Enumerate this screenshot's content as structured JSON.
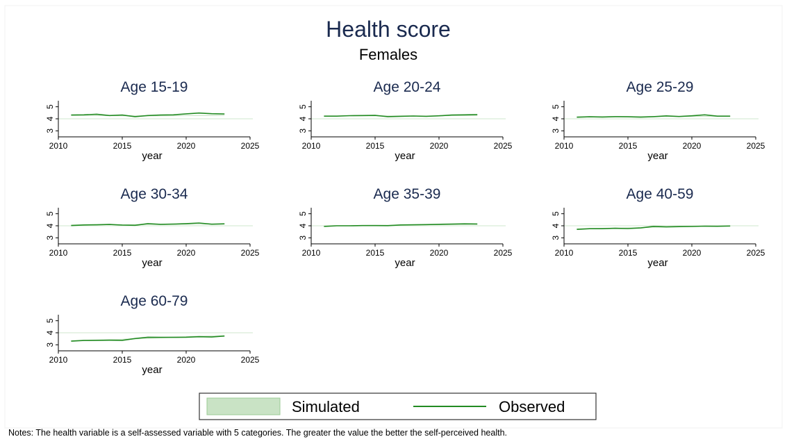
{
  "figure": {
    "title": "Health score",
    "subtitle": "Females",
    "note": "Notes: The health variable is a self-assessed variable with 5 categories. The greater the value the better the self-perceived health.",
    "legend": {
      "simulated": "Simulated",
      "observed": "Observed"
    },
    "colors": {
      "observed": "#228b22",
      "simulated_fill": "#c9e3c5",
      "simulated_edge": "#9bcb95",
      "reference": "#cfe7cc",
      "title": "#1a2a4f"
    }
  },
  "chart_data": [
    {
      "type": "line",
      "title": "Age 15-19",
      "xlabel": "year",
      "xlim": [
        2010,
        2025
      ],
      "ylim": [
        2.5,
        5.5
      ],
      "xticks": [
        2010,
        2015,
        2020,
        2025
      ],
      "yticks": [
        3,
        4,
        5
      ],
      "x": [
        2011,
        2012,
        2013,
        2014,
        2015,
        2016,
        2017,
        2018,
        2019,
        2020,
        2021,
        2022,
        2023
      ],
      "series": [
        {
          "name": "Observed",
          "values": [
            4.31,
            4.33,
            4.38,
            4.27,
            4.31,
            4.18,
            4.27,
            4.31,
            4.33,
            4.41,
            4.48,
            4.42,
            4.4
          ]
        },
        {
          "name": "Simulated",
          "lower": [
            4.24,
            4.24,
            4.23,
            4.23,
            4.22,
            4.21,
            4.21,
            4.22,
            4.22,
            4.23,
            4.23,
            4.23,
            4.24
          ],
          "upper": [
            4.3,
            4.3,
            4.3,
            4.29,
            4.29,
            4.28,
            4.28,
            4.29,
            4.29,
            4.29,
            4.3,
            4.3,
            4.31
          ]
        }
      ]
    },
    {
      "type": "line",
      "title": "Age 20-24",
      "xlabel": "year",
      "xlim": [
        2010,
        2025
      ],
      "ylim": [
        2.5,
        5.5
      ],
      "xticks": [
        2010,
        2015,
        2020,
        2025
      ],
      "yticks": [
        3,
        4,
        5
      ],
      "x": [
        2011,
        2012,
        2013,
        2014,
        2015,
        2016,
        2017,
        2018,
        2019,
        2020,
        2021,
        2022,
        2023
      ],
      "series": [
        {
          "name": "Observed",
          "values": [
            4.22,
            4.22,
            4.26,
            4.27,
            4.28,
            4.18,
            4.21,
            4.23,
            4.2,
            4.25,
            4.31,
            4.33,
            4.35
          ]
        },
        {
          "name": "Simulated",
          "lower": [
            4.2,
            4.2,
            4.21,
            4.21,
            4.21,
            4.21,
            4.21,
            4.22,
            4.22,
            4.22,
            4.23,
            4.23,
            4.23
          ],
          "upper": [
            4.26,
            4.26,
            4.27,
            4.27,
            4.27,
            4.27,
            4.27,
            4.28,
            4.28,
            4.28,
            4.29,
            4.29,
            4.29
          ]
        }
      ]
    },
    {
      "type": "line",
      "title": "Age 25-29",
      "xlabel": "year",
      "xlim": [
        2010,
        2025
      ],
      "ylim": [
        2.5,
        5.5
      ],
      "xticks": [
        2010,
        2015,
        2020,
        2025
      ],
      "yticks": [
        3,
        4,
        5
      ],
      "x": [
        2011,
        2012,
        2013,
        2014,
        2015,
        2016,
        2017,
        2018,
        2019,
        2020,
        2021,
        2022,
        2023
      ],
      "series": [
        {
          "name": "Observed",
          "values": [
            4.13,
            4.17,
            4.15,
            4.18,
            4.17,
            4.14,
            4.18,
            4.24,
            4.19,
            4.25,
            4.33,
            4.22,
            4.22
          ]
        },
        {
          "name": "Simulated",
          "lower": [
            4.14,
            4.14,
            4.15,
            4.15,
            4.15,
            4.16,
            4.16,
            4.16,
            4.17,
            4.17,
            4.17,
            4.18,
            4.18
          ],
          "upper": [
            4.2,
            4.2,
            4.21,
            4.21,
            4.21,
            4.22,
            4.22,
            4.22,
            4.23,
            4.23,
            4.23,
            4.24,
            4.24
          ]
        }
      ]
    },
    {
      "type": "line",
      "title": "Age 30-34",
      "xlabel": "year",
      "xlim": [
        2010,
        2025
      ],
      "ylim": [
        2.5,
        5.5
      ],
      "xticks": [
        2010,
        2015,
        2020,
        2025
      ],
      "yticks": [
        3,
        4,
        5
      ],
      "x": [
        2011,
        2012,
        2013,
        2014,
        2015,
        2016,
        2017,
        2018,
        2019,
        2020,
        2021,
        2022,
        2023
      ],
      "series": [
        {
          "name": "Observed",
          "values": [
            4.02,
            4.07,
            4.08,
            4.11,
            4.06,
            4.04,
            4.18,
            4.12,
            4.14,
            4.18,
            4.23,
            4.13,
            4.16
          ]
        },
        {
          "name": "Simulated",
          "lower": [
            4.05,
            4.05,
            4.06,
            4.06,
            4.07,
            4.07,
            4.08,
            4.08,
            4.09,
            4.09,
            4.1,
            4.1,
            4.11
          ],
          "upper": [
            4.11,
            4.11,
            4.12,
            4.12,
            4.13,
            4.13,
            4.14,
            4.14,
            4.15,
            4.15,
            4.16,
            4.16,
            4.17
          ]
        }
      ]
    },
    {
      "type": "line",
      "title": "Age 35-39",
      "xlabel": "year",
      "xlim": [
        2010,
        2025
      ],
      "ylim": [
        2.5,
        5.5
      ],
      "xticks": [
        2010,
        2015,
        2020,
        2025
      ],
      "yticks": [
        3,
        4,
        5
      ],
      "x": [
        2011,
        2012,
        2013,
        2014,
        2015,
        2016,
        2017,
        2018,
        2019,
        2020,
        2021,
        2022,
        2023
      ],
      "series": [
        {
          "name": "Observed",
          "values": [
            3.95,
            4.0,
            4.0,
            4.02,
            4.02,
            4.01,
            4.07,
            4.08,
            4.1,
            4.12,
            4.14,
            4.16,
            4.15
          ]
        },
        {
          "name": "Simulated",
          "lower": [
            3.97,
            3.98,
            3.99,
            4.0,
            4.01,
            4.02,
            4.03,
            4.04,
            4.05,
            4.06,
            4.07,
            4.08,
            4.09
          ],
          "upper": [
            4.03,
            4.04,
            4.05,
            4.06,
            4.07,
            4.08,
            4.09,
            4.1,
            4.11,
            4.12,
            4.13,
            4.14,
            4.15
          ]
        }
      ]
    },
    {
      "type": "line",
      "title": "Age 40-59",
      "xlabel": "year",
      "xlim": [
        2010,
        2025
      ],
      "ylim": [
        2.5,
        5.5
      ],
      "xticks": [
        2010,
        2015,
        2020,
        2025
      ],
      "yticks": [
        3,
        4,
        5
      ],
      "x": [
        2011,
        2012,
        2013,
        2014,
        2015,
        2016,
        2017,
        2018,
        2019,
        2020,
        2021,
        2022,
        2023
      ],
      "series": [
        {
          "name": "Observed",
          "values": [
            3.7,
            3.76,
            3.76,
            3.79,
            3.77,
            3.82,
            3.95,
            3.91,
            3.93,
            3.94,
            3.97,
            3.96,
            3.98
          ]
        },
        {
          "name": "Simulated",
          "lower": [
            3.72,
            3.74,
            3.76,
            3.78,
            3.8,
            3.82,
            3.84,
            3.86,
            3.88,
            3.9,
            3.92,
            3.94,
            3.95
          ],
          "upper": [
            3.78,
            3.8,
            3.82,
            3.84,
            3.86,
            3.88,
            3.9,
            3.92,
            3.94,
            3.96,
            3.98,
            4.0,
            4.01
          ]
        }
      ]
    },
    {
      "type": "line",
      "title": "Age 60-79",
      "xlabel": "year",
      "xlim": [
        2010,
        2025
      ],
      "ylim": [
        2.5,
        5.5
      ],
      "xticks": [
        2010,
        2015,
        2020,
        2025
      ],
      "yticks": [
        3,
        4,
        5
      ],
      "x": [
        2011,
        2012,
        2013,
        2014,
        2015,
        2016,
        2017,
        2018,
        2019,
        2020,
        2021,
        2022,
        2023
      ],
      "series": [
        {
          "name": "Observed",
          "values": [
            3.3,
            3.36,
            3.37,
            3.38,
            3.37,
            3.52,
            3.63,
            3.62,
            3.62,
            3.63,
            3.67,
            3.65,
            3.73
          ]
        },
        {
          "name": "Simulated",
          "lower": [
            3.3,
            3.33,
            3.36,
            3.39,
            3.42,
            3.46,
            3.5,
            3.54,
            3.58,
            3.61,
            3.64,
            3.66,
            3.68
          ],
          "upper": [
            3.38,
            3.41,
            3.44,
            3.47,
            3.5,
            3.55,
            3.6,
            3.64,
            3.68,
            3.72,
            3.75,
            3.77,
            3.79
          ]
        }
      ]
    }
  ]
}
